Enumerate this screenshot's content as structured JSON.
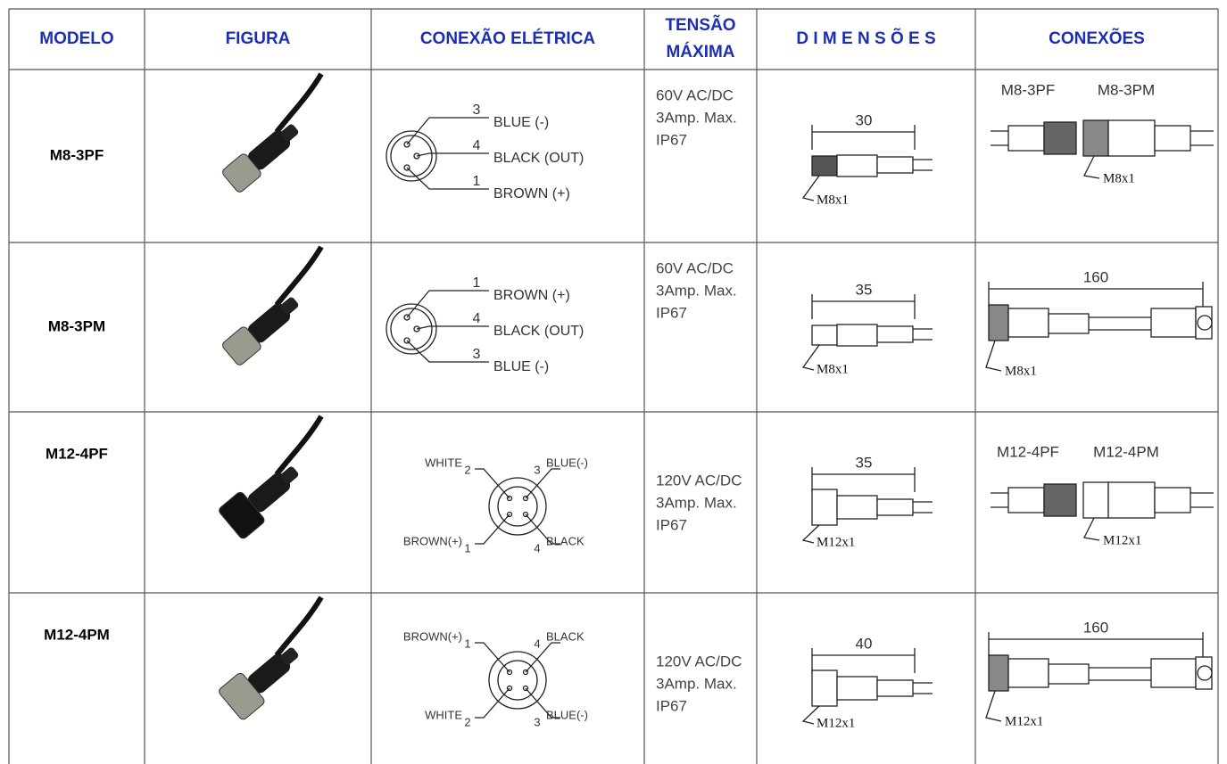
{
  "header": [
    "MODELO",
    "FIGURA",
    "CONEXÃO ELÉTRICA",
    [
      "TENSÃO",
      "MÁXIMA"
    ],
    "D I M E N S Õ E S",
    "CONEXÕES"
  ],
  "rows": [
    {
      "model": "M8-3PF",
      "wiring": [
        {
          "pin": "3",
          "label": "BLUE (-)"
        },
        {
          "pin": "4",
          "label": "BLACK (OUT)"
        },
        {
          "pin": "1",
          "label": "BROWN (+)"
        }
      ],
      "voltage": [
        "60V AC/DC",
        "3Amp. Max.",
        "IP67"
      ],
      "dimension": {
        "length": "30",
        "thread": "M8x1"
      },
      "connections": {
        "labels": [
          "M8-3PF",
          "M8-3PM"
        ],
        "thread": "M8x1"
      }
    },
    {
      "model": "M8-3PM",
      "wiring": [
        {
          "pin": "1",
          "label": "BROWN (+)"
        },
        {
          "pin": "4",
          "label": "BLACK (OUT)"
        },
        {
          "pin": "3",
          "label": "BLUE (-)"
        }
      ],
      "voltage": [
        "60V AC/DC",
        "3Amp. Max.",
        "IP67"
      ],
      "dimension": {
        "length": "35",
        "thread": "M8x1"
      },
      "connections": {
        "length": "160",
        "thread": "M8x1"
      }
    },
    {
      "model": "M12-4PF",
      "wiring": [
        {
          "pin": "2",
          "label": "WHITE"
        },
        {
          "pin": "3",
          "label": "BLUE(-)"
        },
        {
          "pin": "1",
          "label": "BROWN(+)"
        },
        {
          "pin": "4",
          "label": "BLACK"
        }
      ],
      "voltage": [
        "120V AC/DC",
        "3Amp. Max.",
        "IP67"
      ],
      "dimension": {
        "length": "35",
        "thread": "M12x1"
      },
      "connections": {
        "labels": [
          "M12-4PF",
          "M12-4PM"
        ],
        "thread": "M12x1"
      }
    },
    {
      "model": "M12-4PM",
      "wiring": [
        {
          "pin": "1",
          "label": "BROWN(+)"
        },
        {
          "pin": "4",
          "label": "BLACK"
        },
        {
          "pin": "2",
          "label": "WHITE"
        },
        {
          "pin": "3",
          "label": "BLUE(-)"
        }
      ],
      "voltage": [
        "120V AC/DC",
        "3Amp. Max.",
        "IP67"
      ],
      "dimension": {
        "length": "40",
        "thread": "M12x1"
      },
      "connections": {
        "length": "160",
        "thread": "M12x1"
      }
    }
  ]
}
